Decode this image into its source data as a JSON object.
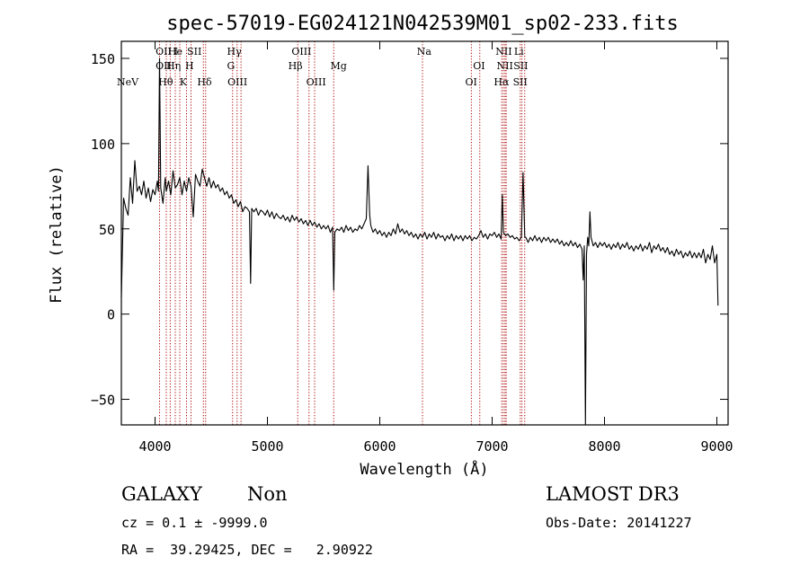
{
  "chart_data": {
    "type": "line",
    "title": "spec-57019-EG024121N042539M01_sp02-233.fits",
    "xlabel": "Wavelength (Å)",
    "ylabel": "Flux (relative)",
    "xlim": [
      3700,
      9100
    ],
    "ylim": [
      -65,
      160
    ],
    "x_ticks": [
      4000,
      5000,
      6000,
      7000,
      8000,
      9000
    ],
    "y_ticks": [
      -50,
      0,
      50,
      100,
      150
    ],
    "grid": false,
    "series": [
      {
        "color": "#000000",
        "points": [
          [
            3700,
            10
          ],
          [
            3720,
            68
          ],
          [
            3740,
            62
          ],
          [
            3760,
            58
          ],
          [
            3780,
            80
          ],
          [
            3800,
            65
          ],
          [
            3820,
            90
          ],
          [
            3840,
            72
          ],
          [
            3860,
            75
          ],
          [
            3880,
            70
          ],
          [
            3900,
            78
          ],
          [
            3920,
            68
          ],
          [
            3940,
            74
          ],
          [
            3960,
            66
          ],
          [
            3980,
            73
          ],
          [
            4000,
            70
          ],
          [
            4020,
            78
          ],
          [
            4030,
            72
          ],
          [
            4040,
            150
          ],
          [
            4050,
            74
          ],
          [
            4070,
            65
          ],
          [
            4090,
            80
          ],
          [
            4100,
            72
          ],
          [
            4120,
            78
          ],
          [
            4140,
            70
          ],
          [
            4160,
            84
          ],
          [
            4180,
            74
          ],
          [
            4200,
            76
          ],
          [
            4220,
            80
          ],
          [
            4240,
            70
          ],
          [
            4260,
            78
          ],
          [
            4280,
            72
          ],
          [
            4300,
            80
          ],
          [
            4320,
            75
          ],
          [
            4340,
            57
          ],
          [
            4360,
            82
          ],
          [
            4380,
            78
          ],
          [
            4400,
            75
          ],
          [
            4420,
            85
          ],
          [
            4440,
            80
          ],
          [
            4460,
            75
          ],
          [
            4480,
            80
          ],
          [
            4500,
            74
          ],
          [
            4520,
            78
          ],
          [
            4540,
            74
          ],
          [
            4560,
            76
          ],
          [
            4580,
            72
          ],
          [
            4600,
            74
          ],
          [
            4620,
            70
          ],
          [
            4640,
            72
          ],
          [
            4660,
            68
          ],
          [
            4680,
            70
          ],
          [
            4700,
            65
          ],
          [
            4720,
            67
          ],
          [
            4740,
            63
          ],
          [
            4760,
            66
          ],
          [
            4780,
            60
          ],
          [
            4800,
            63
          ],
          [
            4820,
            62
          ],
          [
            4840,
            60
          ],
          [
            4850,
            18
          ],
          [
            4860,
            62
          ],
          [
            4880,
            60
          ],
          [
            4900,
            62
          ],
          [
            4920,
            58
          ],
          [
            4940,
            61
          ],
          [
            4960,
            60
          ],
          [
            4980,
            58
          ],
          [
            5000,
            61
          ],
          [
            5020,
            57
          ],
          [
            5040,
            60
          ],
          [
            5060,
            56
          ],
          [
            5080,
            59
          ],
          [
            5100,
            57
          ],
          [
            5120,
            56
          ],
          [
            5140,
            58
          ],
          [
            5160,
            55
          ],
          [
            5180,
            57
          ],
          [
            5200,
            54
          ],
          [
            5220,
            58
          ],
          [
            5240,
            55
          ],
          [
            5260,
            57
          ],
          [
            5280,
            54
          ],
          [
            5300,
            56
          ],
          [
            5320,
            53
          ],
          [
            5340,
            55
          ],
          [
            5360,
            52
          ],
          [
            5380,
            55
          ],
          [
            5400,
            52
          ],
          [
            5420,
            54
          ],
          [
            5440,
            51
          ],
          [
            5460,
            53
          ],
          [
            5480,
            50
          ],
          [
            5500,
            52
          ],
          [
            5520,
            50
          ],
          [
            5540,
            52
          ],
          [
            5560,
            48
          ],
          [
            5580,
            51
          ],
          [
            5590,
            14
          ],
          [
            5600,
            48
          ],
          [
            5620,
            50
          ],
          [
            5640,
            49
          ],
          [
            5660,
            51
          ],
          [
            5680,
            48
          ],
          [
            5700,
            52
          ],
          [
            5720,
            49
          ],
          [
            5740,
            51
          ],
          [
            5760,
            48
          ],
          [
            5780,
            50
          ],
          [
            5800,
            49
          ],
          [
            5820,
            52
          ],
          [
            5840,
            50
          ],
          [
            5860,
            53
          ],
          [
            5880,
            56
          ],
          [
            5895,
            87
          ],
          [
            5910,
            58
          ],
          [
            5920,
            52
          ],
          [
            5940,
            48
          ],
          [
            5960,
            50
          ],
          [
            5980,
            47
          ],
          [
            6000,
            49
          ],
          [
            6020,
            46
          ],
          [
            6040,
            48
          ],
          [
            6060,
            45
          ],
          [
            6080,
            48
          ],
          [
            6100,
            46
          ],
          [
            6120,
            50
          ],
          [
            6140,
            47
          ],
          [
            6160,
            53
          ],
          [
            6180,
            48
          ],
          [
            6200,
            50
          ],
          [
            6220,
            47
          ],
          [
            6240,
            49
          ],
          [
            6260,
            46
          ],
          [
            6280,
            48
          ],
          [
            6300,
            45
          ],
          [
            6320,
            47
          ],
          [
            6340,
            44
          ],
          [
            6360,
            47
          ],
          [
            6380,
            45
          ],
          [
            6400,
            48
          ],
          [
            6420,
            44
          ],
          [
            6440,
            47
          ],
          [
            6460,
            45
          ],
          [
            6480,
            48
          ],
          [
            6500,
            44
          ],
          [
            6520,
            47
          ],
          [
            6540,
            45
          ],
          [
            6560,
            46
          ],
          [
            6580,
            43
          ],
          [
            6600,
            46
          ],
          [
            6620,
            44
          ],
          [
            6640,
            47
          ],
          [
            6660,
            43
          ],
          [
            6680,
            46
          ],
          [
            6700,
            44
          ],
          [
            6720,
            46
          ],
          [
            6740,
            43
          ],
          [
            6760,
            46
          ],
          [
            6780,
            44
          ],
          [
            6800,
            46
          ],
          [
            6820,
            43
          ],
          [
            6840,
            45
          ],
          [
            6860,
            44
          ],
          [
            6880,
            46
          ],
          [
            6900,
            49
          ],
          [
            6920,
            45
          ],
          [
            6940,
            47
          ],
          [
            6960,
            44
          ],
          [
            6980,
            47
          ],
          [
            7000,
            46
          ],
          [
            7020,
            48
          ],
          [
            7040,
            45
          ],
          [
            7060,
            47
          ],
          [
            7080,
            44
          ],
          [
            7090,
            70
          ],
          [
            7100,
            48
          ],
          [
            7120,
            46
          ],
          [
            7140,
            47
          ],
          [
            7160,
            45
          ],
          [
            7180,
            46
          ],
          [
            7200,
            44
          ],
          [
            7220,
            45
          ],
          [
            7240,
            43
          ],
          [
            7260,
            45
          ],
          [
            7275,
            83
          ],
          [
            7290,
            45
          ],
          [
            7300,
            45
          ],
          [
            7320,
            42
          ],
          [
            7340,
            45
          ],
          [
            7360,
            43
          ],
          [
            7380,
            46
          ],
          [
            7400,
            43
          ],
          [
            7420,
            45
          ],
          [
            7440,
            42
          ],
          [
            7460,
            45
          ],
          [
            7480,
            43
          ],
          [
            7500,
            45
          ],
          [
            7520,
            42
          ],
          [
            7540,
            44
          ],
          [
            7560,
            42
          ],
          [
            7580,
            44
          ],
          [
            7600,
            41
          ],
          [
            7620,
            43
          ],
          [
            7640,
            40
          ],
          [
            7660,
            42
          ],
          [
            7680,
            40
          ],
          [
            7700,
            43
          ],
          [
            7720,
            40
          ],
          [
            7740,
            42
          ],
          [
            7760,
            39
          ],
          [
            7780,
            41
          ],
          [
            7800,
            38
          ],
          [
            7810,
            20
          ],
          [
            7820,
            40
          ],
          [
            7830,
            -65
          ],
          [
            7840,
            35
          ],
          [
            7850,
            45
          ],
          [
            7860,
            40
          ],
          [
            7870,
            60
          ],
          [
            7880,
            45
          ],
          [
            7900,
            40
          ],
          [
            7920,
            42
          ],
          [
            7940,
            39
          ],
          [
            7960,
            42
          ],
          [
            7980,
            40
          ],
          [
            8000,
            42
          ],
          [
            8020,
            39
          ],
          [
            8040,
            41
          ],
          [
            8060,
            38
          ],
          [
            8080,
            41
          ],
          [
            8100,
            39
          ],
          [
            8120,
            42
          ],
          [
            8140,
            38
          ],
          [
            8160,
            41
          ],
          [
            8180,
            39
          ],
          [
            8200,
            42
          ],
          [
            8220,
            38
          ],
          [
            8240,
            40
          ],
          [
            8260,
            37
          ],
          [
            8280,
            40
          ],
          [
            8300,
            38
          ],
          [
            8320,
            41
          ],
          [
            8340,
            37
          ],
          [
            8360,
            40
          ],
          [
            8380,
            38
          ],
          [
            8400,
            42
          ],
          [
            8420,
            36
          ],
          [
            8440,
            40
          ],
          [
            8460,
            38
          ],
          [
            8480,
            41
          ],
          [
            8500,
            37
          ],
          [
            8520,
            39
          ],
          [
            8540,
            36
          ],
          [
            8560,
            39
          ],
          [
            8580,
            35
          ],
          [
            8600,
            37
          ],
          [
            8620,
            34
          ],
          [
            8640,
            38
          ],
          [
            8660,
            35
          ],
          [
            8680,
            37
          ],
          [
            8700,
            33
          ],
          [
            8720,
            36
          ],
          [
            8740,
            34
          ],
          [
            8760,
            37
          ],
          [
            8780,
            33
          ],
          [
            8800,
            36
          ],
          [
            8820,
            33
          ],
          [
            8840,
            36
          ],
          [
            8860,
            33
          ],
          [
            8880,
            38
          ],
          [
            8900,
            30
          ],
          [
            8920,
            35
          ],
          [
            8940,
            32
          ],
          [
            8960,
            40
          ],
          [
            8980,
            30
          ],
          [
            9000,
            35
          ],
          [
            9010,
            5
          ]
        ]
      }
    ],
    "line_markers": [
      {
        "label": "NeV",
        "x": 3660,
        "row": 3
      },
      {
        "label": "OII",
        "x": 4005,
        "row": 1
      },
      {
        "label": "OII",
        "x": 4005,
        "row": 2
      },
      {
        "label": "Hθ",
        "x": 4030,
        "row": 3
      },
      {
        "label": "He",
        "x": 4115,
        "row": 1
      },
      {
        "label": "Hη",
        "x": 4100,
        "row": 2
      },
      {
        "label": "I",
        "x": 4170,
        "row": 1
      },
      {
        "label": "K",
        "x": 4218,
        "row": 3
      },
      {
        "label": "H",
        "x": 4268,
        "row": 2
      },
      {
        "label": "SII",
        "x": 4285,
        "row": 1
      },
      {
        "label": "Hδ",
        "x": 4375,
        "row": 3
      },
      {
        "label": "Hγ",
        "x": 4640,
        "row": 1
      },
      {
        "label": "G",
        "x": 4640,
        "row": 2
      },
      {
        "label": "OIII",
        "x": 4645,
        "row": 3
      },
      {
        "label": "OIII",
        "x": 5215,
        "row": 1
      },
      {
        "label": "Hβ",
        "x": 5185,
        "row": 2
      },
      {
        "label": "OIII",
        "x": 5345,
        "row": 3
      },
      {
        "label": "Mg",
        "x": 5560,
        "row": 2
      },
      {
        "label": "Na",
        "x": 6330,
        "row": 1
      },
      {
        "label": "OI",
        "x": 6830,
        "row": 2
      },
      {
        "label": "OI",
        "x": 6760,
        "row": 3
      },
      {
        "label": "NII",
        "x": 7030,
        "row": 1
      },
      {
        "label": "NII",
        "x": 7040,
        "row": 2
      },
      {
        "label": "Hα",
        "x": 7015,
        "row": 3
      },
      {
        "label": "Li",
        "x": 7195,
        "row": 1
      },
      {
        "label": "SII",
        "x": 7190,
        "row": 2
      },
      {
        "label": "SII",
        "x": 7185,
        "row": 3
      }
    ],
    "line_positions": [
      4040,
      4100,
      4135,
      4180,
      4220,
      4280,
      4320,
      4430,
      4450,
      4690,
      4730,
      4765,
      5270,
      5370,
      5420,
      5590,
      6380,
      6815,
      6890,
      7085,
      7100,
      7115,
      7125,
      7250,
      7265,
      7290
    ]
  },
  "info": {
    "object_class": "GALAXY",
    "subclass": "Non",
    "cz_line": "cz = 0.1 ± -9999.0",
    "coords_line": "RA =  39.29425, DEC =   2.90922",
    "survey": "LAMOST DR3",
    "obs_date": "Obs-Date: 20141227"
  },
  "colors": {
    "spectrum": "#000000",
    "line_markers": "#aa0000",
    "axes": "#000000"
  }
}
